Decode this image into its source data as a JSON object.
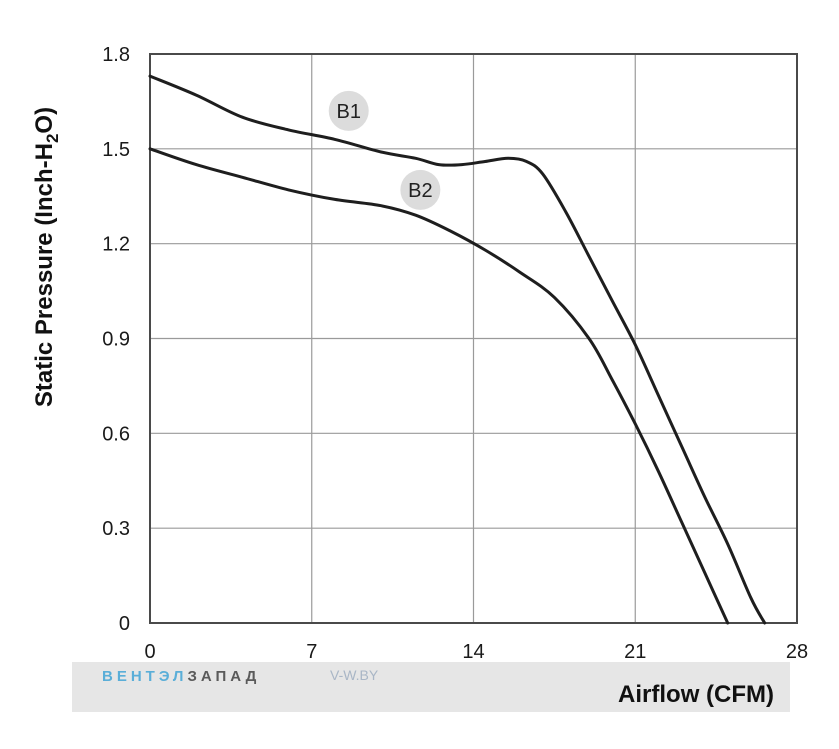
{
  "chart_data": {
    "type": "line",
    "xlabel": "Airflow (CFM)",
    "ylabel": "Static Pressure (Inch-H",
    "ylabel_sub": "2",
    "ylabel_end": "O)",
    "xlim": [
      0,
      28
    ],
    "ylim": [
      0,
      1.8
    ],
    "x_ticks": [
      0,
      7,
      14,
      21,
      28
    ],
    "y_ticks": [
      0,
      0.3,
      0.6,
      0.9,
      1.2,
      1.5,
      1.8
    ],
    "x_tick_labels": [
      "0",
      "7",
      "14",
      "21",
      "28"
    ],
    "y_tick_labels": [
      "0",
      "0.3",
      "0.6",
      "0.9",
      "1.2",
      "1.5",
      "1.8"
    ],
    "grid": true,
    "series": [
      {
        "name": "B1",
        "x": [
          0,
          2,
          4,
          6,
          8,
          10,
          11.5,
          12.5,
          13.5,
          14.5,
          15.5,
          16.3,
          17,
          18,
          19,
          20,
          21,
          22,
          23,
          24,
          25,
          26,
          26.6
        ],
        "y": [
          1.73,
          1.67,
          1.6,
          1.56,
          1.53,
          1.49,
          1.47,
          1.45,
          1.45,
          1.46,
          1.47,
          1.46,
          1.42,
          1.3,
          1.16,
          1.02,
          0.88,
          0.72,
          0.56,
          0.4,
          0.25,
          0.08,
          0.0
        ]
      },
      {
        "name": "B2",
        "x": [
          0,
          2,
          4,
          6,
          8,
          10,
          11.5,
          13,
          14.5,
          16,
          17.5,
          19,
          20,
          21,
          22,
          23,
          24,
          25
        ],
        "y": [
          1.5,
          1.45,
          1.41,
          1.37,
          1.34,
          1.32,
          1.29,
          1.24,
          1.18,
          1.11,
          1.03,
          0.9,
          0.77,
          0.63,
          0.48,
          0.32,
          0.16,
          0.0
        ]
      }
    ],
    "series_tags": [
      {
        "label": "B1",
        "x": 8.6,
        "y": 1.62
      },
      {
        "label": "B2",
        "x": 11.7,
        "y": 1.37
      }
    ]
  },
  "watermark": {
    "brand_part1": "ВЕНТЭЛ",
    "brand_part2": "ЗАПАД",
    "site": "V-W.BY",
    "brand_color1": "#5aaed8",
    "brand_color2": "#5a5a5a"
  },
  "colors": {
    "curve": "#1e1e1e",
    "grid": "#9a9a9a",
    "frame": "#4a4a4a",
    "footer_band": "#e6e6e6"
  }
}
